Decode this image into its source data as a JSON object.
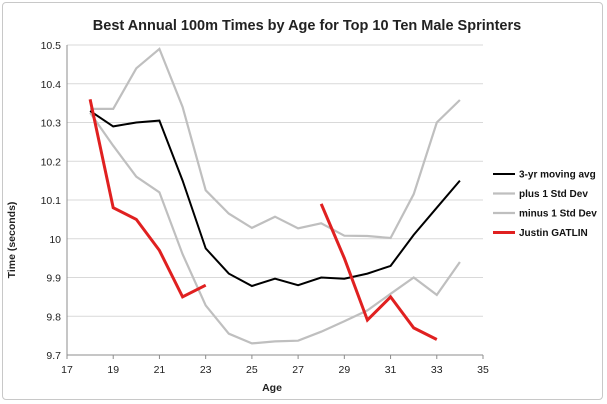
{
  "chart_data": {
    "type": "line",
    "title": "Best Annual 100m Times by Age for Top 10 Ten Male Sprinters",
    "xlabel": "Age",
    "ylabel": "Time (seconds)",
    "xlim": [
      17,
      35
    ],
    "ylim": [
      9.7,
      10.5
    ],
    "x_ticks": [
      17,
      19,
      21,
      23,
      25,
      27,
      29,
      31,
      33,
      35
    ],
    "y_ticks": [
      9.7,
      9.8,
      9.9,
      10,
      10.1,
      10.2,
      10.3,
      10.4,
      10.5
    ],
    "y_tick_labels": [
      "9.7",
      "9.8",
      "9.9",
      "10",
      "10.1",
      "10.2",
      "10.3",
      "10.4",
      "10.5"
    ],
    "grid": "horizontal",
    "legend_position": "right",
    "series": [
      {
        "name": "3-yr moving avg",
        "color": "#000000",
        "width": 2,
        "segments": [
          [
            [
              18,
              10.33
            ],
            [
              19,
              10.29
            ],
            [
              20,
              10.3
            ],
            [
              21,
              10.305
            ],
            [
              22,
              10.15
            ],
            [
              23,
              9.975
            ],
            [
              24,
              9.91
            ],
            [
              25,
              9.878
            ],
            [
              26,
              9.897
            ],
            [
              27,
              9.88
            ],
            [
              28,
              9.9
            ],
            [
              29,
              9.897
            ],
            [
              30,
              9.91
            ],
            [
              31,
              9.93
            ],
            [
              32,
              10.01
            ],
            [
              33,
              10.08
            ],
            [
              34,
              10.15
            ]
          ]
        ]
      },
      {
        "name": "plus 1 Std Dev",
        "color": "#bfbfbf",
        "width": 2.2,
        "segments": [
          [
            [
              18,
              10.335
            ],
            [
              19,
              10.335
            ],
            [
              20,
              10.44
            ],
            [
              21,
              10.49
            ],
            [
              22,
              10.34
            ],
            [
              23,
              10.125
            ],
            [
              24,
              10.065
            ],
            [
              25,
              10.028
            ],
            [
              26,
              10.057
            ],
            [
              27,
              10.027
            ],
            [
              28,
              10.04
            ],
            [
              29,
              10.008
            ],
            [
              30,
              10.007
            ],
            [
              31,
              10.002
            ],
            [
              32,
              10.115
            ],
            [
              33,
              10.3
            ],
            [
              34,
              10.358
            ]
          ]
        ]
      },
      {
        "name": "minus 1 Std Dev",
        "color": "#bfbfbf",
        "width": 2.2,
        "segments": [
          [
            [
              18,
              10.325
            ],
            [
              19,
              10.24
            ],
            [
              20,
              10.16
            ],
            [
              21,
              10.12
            ],
            [
              22,
              9.96
            ],
            [
              23,
              9.828
            ],
            [
              24,
              9.755
            ],
            [
              25,
              9.73
            ],
            [
              26,
              9.735
            ],
            [
              27,
              9.737
            ],
            [
              28,
              9.76
            ],
            [
              29,
              9.787
            ],
            [
              30,
              9.815
            ],
            [
              31,
              9.858
            ],
            [
              32,
              9.9
            ],
            [
              33,
              9.855
            ],
            [
              34,
              9.94
            ]
          ]
        ]
      },
      {
        "name": "Justin GATLIN",
        "color": "#e02020",
        "width": 3,
        "segments": [
          [
            [
              18,
              10.36
            ],
            [
              19,
              10.08
            ],
            [
              20,
              10.05
            ],
            [
              21,
              9.97
            ],
            [
              22,
              9.85
            ],
            [
              23,
              9.88
            ]
          ],
          [
            [
              28,
              10.09
            ],
            [
              29,
              9.95
            ],
            [
              30,
              9.79
            ],
            [
              31,
              9.85
            ],
            [
              32,
              9.77
            ],
            [
              33,
              9.74
            ]
          ]
        ]
      }
    ]
  }
}
